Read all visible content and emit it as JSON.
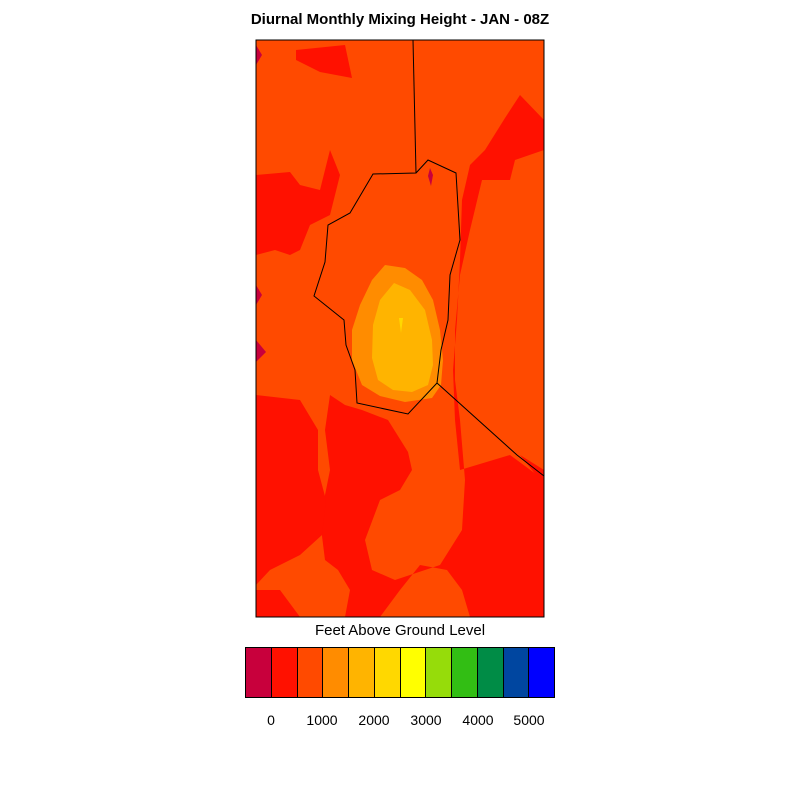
{
  "title": "Diurnal Monthly Mixing Height - JAN - 08Z",
  "legend": {
    "title": "Feet Above Ground Level",
    "colors": [
      "#c8003c",
      "#ff1100",
      "#ff4a00",
      "#ff8c00",
      "#ffb400",
      "#ffd800",
      "#ffff00",
      "#96dc0a",
      "#32be14",
      "#008c46",
      "#0046a0",
      "#0000ff"
    ],
    "tick_labels": [
      "0",
      "1000",
      "2000",
      "3000",
      "4000",
      "5000"
    ]
  },
  "map": {
    "fill_levels": {
      "dark_red": "#ff1100",
      "red_orange": "#ff4a00",
      "orange": "#ff8c00",
      "amber": "#ffb400",
      "crimson": "#c8003c"
    },
    "boundary_color": "#000000"
  }
}
